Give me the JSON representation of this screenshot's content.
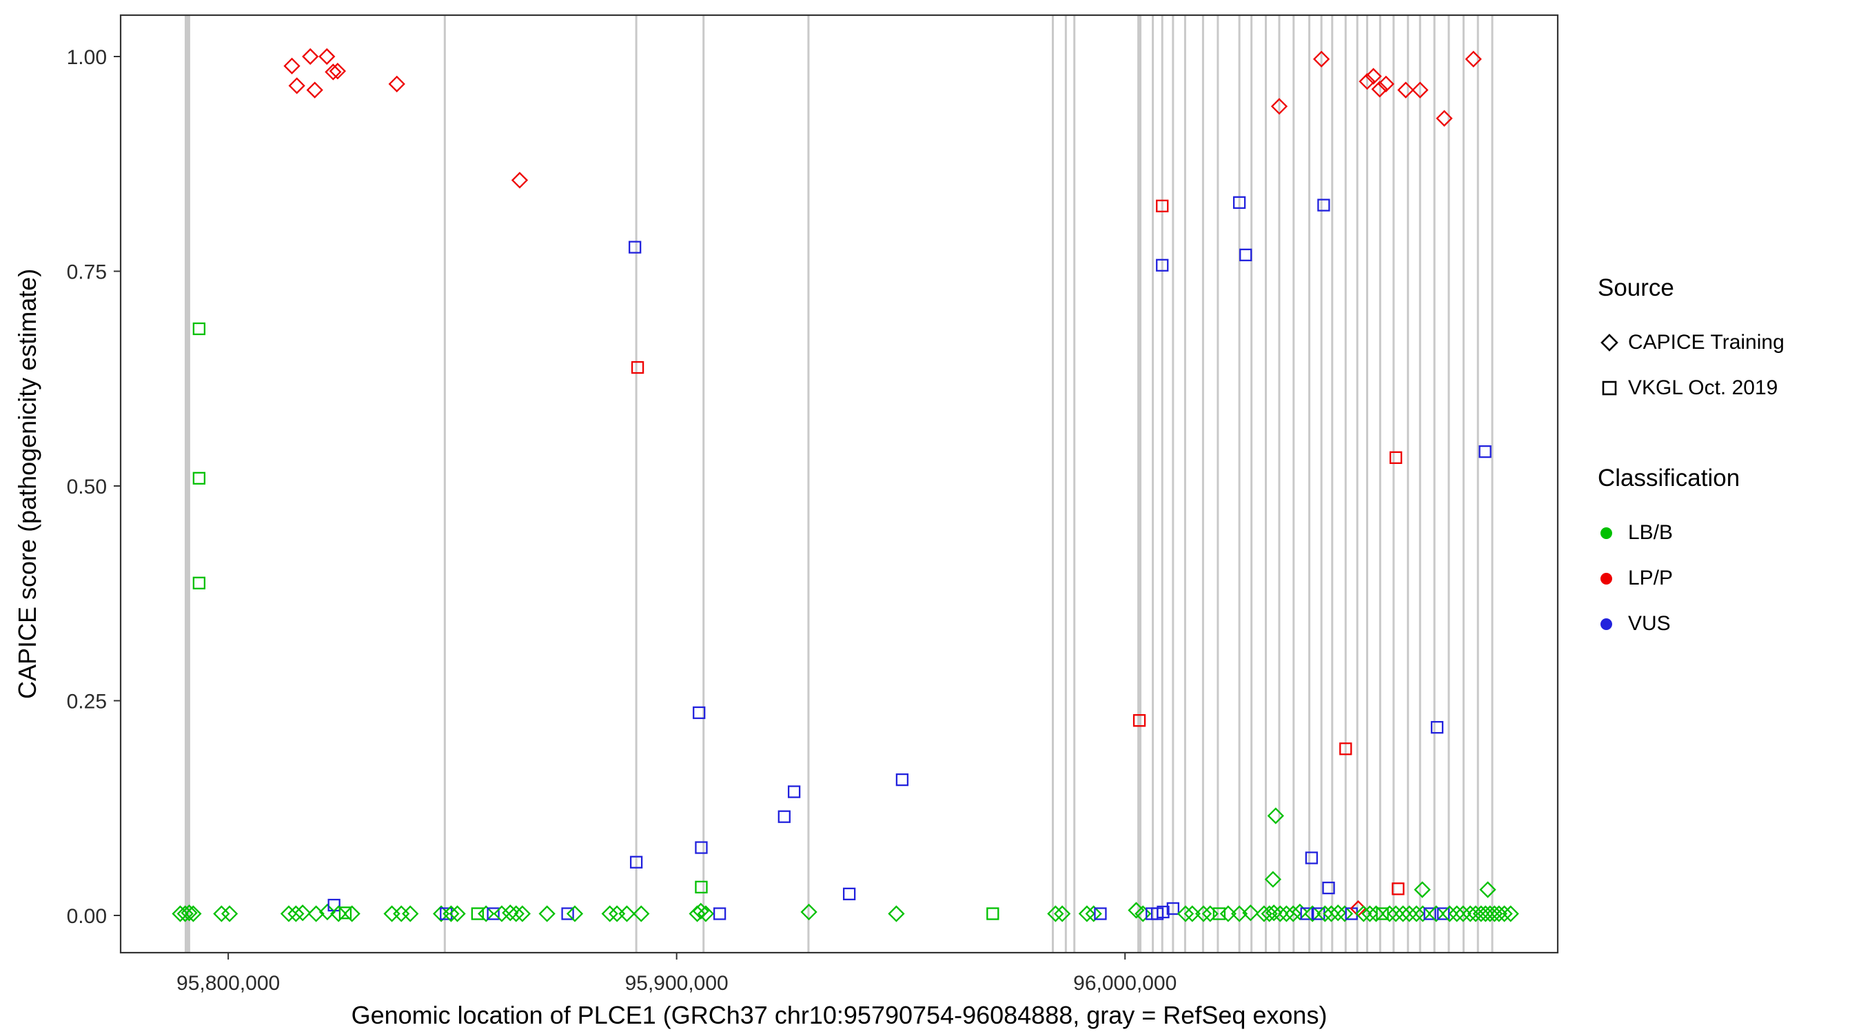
{
  "legend": {
    "source": {
      "title": "Source",
      "items": [
        {
          "label": "CAPICE Training",
          "shape": "diamond"
        },
        {
          "label": "VKGL Oct. 2019",
          "shape": "square"
        }
      ]
    },
    "classification": {
      "title": "Classification",
      "items": [
        {
          "label": "LB/B",
          "color": "#00C000"
        },
        {
          "label": "LP/P",
          "color": "#EE0000"
        },
        {
          "label": "VUS",
          "color": "#2222DD"
        }
      ]
    }
  },
  "chart_data": {
    "type": "scatter",
    "title": "",
    "xlabel": "Genomic location of PLCE1 (GRCh37 chr10:95790754-96084888, gray = RefSeq exons)",
    "ylabel": "CAPICE score (pathogenicity estimate)",
    "xlim": [
      95776000,
      96096500
    ],
    "ylim": [
      0,
      1
    ],
    "grid": false,
    "legend_position": "right",
    "x_ticks": [
      {
        "v": 95800000,
        "label": "95,800,000"
      },
      {
        "v": 95900000,
        "label": "95,900,000"
      },
      {
        "v": 96000000,
        "label": "96,000,000"
      }
    ],
    "y_ticks": [
      {
        "v": 0.0,
        "label": "0.00"
      },
      {
        "v": 0.25,
        "label": "0.25"
      },
      {
        "v": 0.5,
        "label": "0.50"
      },
      {
        "v": 0.75,
        "label": "0.75"
      },
      {
        "v": 1.0,
        "label": "1.00"
      }
    ],
    "classes": {
      "G": "LB/B",
      "R": "LP/P",
      "B": "VUS"
    },
    "sources": {
      "D": "CAPICE Training",
      "S": "VKGL Oct. 2019"
    },
    "colors": {
      "G": "#00C000",
      "R": "#EE0000",
      "B": "#2222DD"
    },
    "exon_color": "#c9c9c9",
    "exons": [
      {
        "x": 95790900,
        "w": 8
      },
      {
        "x": 95848300,
        "w": 3
      },
      {
        "x": 95891000,
        "w": 3
      },
      {
        "x": 95906000,
        "w": 3
      },
      {
        "x": 95929400,
        "w": 3
      },
      {
        "x": 95983900,
        "w": 3
      },
      {
        "x": 95986800,
        "w": 3
      },
      {
        "x": 95988700,
        "w": 3
      },
      {
        "x": 96003200,
        "w": 6
      },
      {
        "x": 96006200,
        "w": 3
      },
      {
        "x": 96008300,
        "w": 3
      },
      {
        "x": 96010700,
        "w": 3
      },
      {
        "x": 96013400,
        "w": 3
      },
      {
        "x": 96017400,
        "w": 3
      },
      {
        "x": 96020700,
        "w": 3
      },
      {
        "x": 96025500,
        "w": 3
      },
      {
        "x": 96028200,
        "w": 3
      },
      {
        "x": 96031400,
        "w": 3
      },
      {
        "x": 96034400,
        "w": 3
      },
      {
        "x": 96037600,
        "w": 3
      },
      {
        "x": 96041100,
        "w": 3
      },
      {
        "x": 96043800,
        "w": 3
      },
      {
        "x": 96046200,
        "w": 3
      },
      {
        "x": 96049200,
        "w": 3
      },
      {
        "x": 96051800,
        "w": 3
      },
      {
        "x": 96054000,
        "w": 3
      },
      {
        "x": 96056900,
        "w": 3
      },
      {
        "x": 96059900,
        "w": 3
      },
      {
        "x": 96063100,
        "w": 3
      },
      {
        "x": 96065800,
        "w": 3
      },
      {
        "x": 96069000,
        "w": 3
      },
      {
        "x": 96072200,
        "w": 3
      },
      {
        "x": 96075500,
        "w": 3
      },
      {
        "x": 96078700,
        "w": 3
      },
      {
        "x": 96081900,
        "w": 3
      }
    ],
    "points": [
      [
        95814200,
        0.989,
        "R",
        "D"
      ],
      [
        95818300,
        1.0,
        "R",
        "D"
      ],
      [
        95822000,
        1.0,
        "R",
        "D"
      ],
      [
        95824400,
        0.983,
        "R",
        "D"
      ],
      [
        95815300,
        0.966,
        "R",
        "D"
      ],
      [
        95819300,
        0.961,
        "R",
        "D"
      ],
      [
        95823400,
        0.982,
        "R",
        "D"
      ],
      [
        95837600,
        0.968,
        "R",
        "D"
      ],
      [
        95865000,
        0.856,
        "R",
        "D"
      ],
      [
        95891300,
        0.638,
        "R",
        "S"
      ],
      [
        95890700,
        0.778,
        "B",
        "S"
      ],
      [
        95793500,
        0.683,
        "G",
        "S"
      ],
      [
        95793500,
        0.509,
        "G",
        "S"
      ],
      [
        95793500,
        0.387,
        "G",
        "S"
      ],
      [
        95905000,
        0.236,
        "B",
        "S"
      ],
      [
        95891000,
        0.062,
        "B",
        "S"
      ],
      [
        95905500,
        0.079,
        "B",
        "S"
      ],
      [
        95905500,
        0.033,
        "G",
        "S"
      ],
      [
        95926200,
        0.144,
        "B",
        "S"
      ],
      [
        95924000,
        0.115,
        "B",
        "S"
      ],
      [
        95938500,
        0.025,
        "B",
        "S"
      ],
      [
        95950300,
        0.158,
        "B",
        "S"
      ],
      [
        96003200,
        0.227,
        "R",
        "S"
      ],
      [
        96008300,
        0.826,
        "R",
        "S"
      ],
      [
        96008300,
        0.757,
        "B",
        "S"
      ],
      [
        96025500,
        0.83,
        "B",
        "S"
      ],
      [
        96026900,
        0.769,
        "B",
        "S"
      ],
      [
        96044300,
        0.827,
        "B",
        "S"
      ],
      [
        96034400,
        0.942,
        "R",
        "D"
      ],
      [
        96043800,
        0.997,
        "R",
        "D"
      ],
      [
        96054000,
        0.971,
        "R",
        "D"
      ],
      [
        96055400,
        0.977,
        "R",
        "D"
      ],
      [
        96056800,
        0.962,
        "R",
        "D"
      ],
      [
        96058200,
        0.968,
        "R",
        "D"
      ],
      [
        96062600,
        0.961,
        "R",
        "D"
      ],
      [
        96065800,
        0.961,
        "R",
        "D"
      ],
      [
        96071200,
        0.928,
        "R",
        "D"
      ],
      [
        96077700,
        0.997,
        "R",
        "D"
      ],
      [
        96060400,
        0.533,
        "R",
        "S"
      ],
      [
        96080300,
        0.54,
        "B",
        "S"
      ],
      [
        96069600,
        0.219,
        "B",
        "S"
      ],
      [
        96049200,
        0.194,
        "R",
        "S"
      ],
      [
        96060900,
        0.031,
        "R",
        "S"
      ],
      [
        96033600,
        0.116,
        "G",
        "D"
      ],
      [
        96033000,
        0.042,
        "G",
        "D"
      ],
      [
        96041600,
        0.067,
        "B",
        "S"
      ],
      [
        96045400,
        0.032,
        "B",
        "S"
      ],
      [
        96066300,
        0.03,
        "G",
        "D"
      ],
      [
        96080900,
        0.03,
        "G",
        "D"
      ],
      [
        95789300,
        0.002,
        "G",
        "D"
      ],
      [
        95790400,
        0.002,
        "G",
        "D"
      ],
      [
        95791300,
        0.003,
        "G",
        "D"
      ],
      [
        95792200,
        0.002,
        "G",
        "D"
      ],
      [
        95798500,
        0.002,
        "G",
        "D"
      ],
      [
        95800300,
        0.002,
        "G",
        "D"
      ],
      [
        95813500,
        0.002,
        "G",
        "D"
      ],
      [
        95815100,
        0.002,
        "G",
        "D"
      ],
      [
        95816600,
        0.003,
        "G",
        "D"
      ],
      [
        95819600,
        0.002,
        "G",
        "D"
      ],
      [
        95822100,
        0.004,
        "G",
        "D"
      ],
      [
        95823600,
        0.012,
        "B",
        "S"
      ],
      [
        95824600,
        0.002,
        "G",
        "D"
      ],
      [
        95826100,
        0.003,
        "G",
        "S"
      ],
      [
        95827600,
        0.002,
        "G",
        "D"
      ],
      [
        95836500,
        0.002,
        "G",
        "D"
      ],
      [
        95838600,
        0.002,
        "G",
        "D"
      ],
      [
        95840600,
        0.002,
        "G",
        "D"
      ],
      [
        95847500,
        0.002,
        "G",
        "D"
      ],
      [
        95848600,
        0.002,
        "B",
        "S"
      ],
      [
        95849700,
        0.002,
        "G",
        "D"
      ],
      [
        95851100,
        0.002,
        "G",
        "D"
      ],
      [
        95855600,
        0.002,
        "G",
        "S"
      ],
      [
        95857500,
        0.002,
        "G",
        "D"
      ],
      [
        95859100,
        0.002,
        "B",
        "S"
      ],
      [
        95861000,
        0.002,
        "G",
        "D"
      ],
      [
        95862900,
        0.003,
        "G",
        "D"
      ],
      [
        95864200,
        0.002,
        "G",
        "D"
      ],
      [
        95865600,
        0.002,
        "G",
        "D"
      ],
      [
        95871100,
        0.002,
        "G",
        "D"
      ],
      [
        95875700,
        0.002,
        "B",
        "S"
      ],
      [
        95877300,
        0.002,
        "G",
        "D"
      ],
      [
        95885100,
        0.002,
        "G",
        "D"
      ],
      [
        95886700,
        0.002,
        "G",
        "D"
      ],
      [
        95888900,
        0.002,
        "G",
        "D"
      ],
      [
        95892100,
        0.002,
        "G",
        "D"
      ],
      [
        95904600,
        0.002,
        "G",
        "D"
      ],
      [
        95905400,
        0.005,
        "G",
        "D"
      ],
      [
        95906500,
        0.002,
        "G",
        "D"
      ],
      [
        95909600,
        0.002,
        "B",
        "S"
      ],
      [
        95929500,
        0.004,
        "G",
        "D"
      ],
      [
        95949000,
        0.002,
        "G",
        "D"
      ],
      [
        95970500,
        0.002,
        "G",
        "S"
      ],
      [
        95984500,
        0.002,
        "G",
        "D"
      ],
      [
        95986000,
        0.002,
        "G",
        "D"
      ],
      [
        95991500,
        0.002,
        "G",
        "D"
      ],
      [
        95993000,
        0.002,
        "G",
        "D"
      ],
      [
        95994500,
        0.002,
        "B",
        "S"
      ],
      [
        96002500,
        0.006,
        "G",
        "D"
      ],
      [
        96004000,
        0.002,
        "G",
        "D"
      ],
      [
        96006000,
        0.002,
        "B",
        "S"
      ],
      [
        96007200,
        0.002,
        "B",
        "S"
      ],
      [
        96008500,
        0.004,
        "B",
        "S"
      ],
      [
        96010700,
        0.008,
        "B",
        "S"
      ],
      [
        96013500,
        0.002,
        "G",
        "D"
      ],
      [
        96015000,
        0.002,
        "G",
        "D"
      ],
      [
        96017500,
        0.002,
        "G",
        "D"
      ],
      [
        96019000,
        0.002,
        "G",
        "D"
      ],
      [
        96021000,
        0.002,
        "G",
        "S"
      ],
      [
        96023000,
        0.002,
        "G",
        "D"
      ],
      [
        96025500,
        0.002,
        "G",
        "D"
      ],
      [
        96028000,
        0.003,
        "G",
        "D"
      ],
      [
        96031000,
        0.002,
        "G",
        "D"
      ],
      [
        96032200,
        0.002,
        "G",
        "D"
      ],
      [
        96033200,
        0.003,
        "G",
        "D"
      ],
      [
        96034600,
        0.002,
        "G",
        "D"
      ],
      [
        96036000,
        0.002,
        "G",
        "D"
      ],
      [
        96037500,
        0.002,
        "G",
        "D"
      ],
      [
        96039000,
        0.004,
        "G",
        "D"
      ],
      [
        96040500,
        0.002,
        "B",
        "S"
      ],
      [
        96041800,
        0.002,
        "G",
        "D"
      ],
      [
        96043200,
        0.002,
        "B",
        "S"
      ],
      [
        96044600,
        0.002,
        "G",
        "D"
      ],
      [
        96046000,
        0.002,
        "G",
        "D"
      ],
      [
        96047500,
        0.003,
        "G",
        "D"
      ],
      [
        96049000,
        0.002,
        "G",
        "D"
      ],
      [
        96050500,
        0.002,
        "B",
        "S"
      ],
      [
        96052000,
        0.008,
        "R",
        "D"
      ],
      [
        96053200,
        0.002,
        "G",
        "D"
      ],
      [
        96054600,
        0.002,
        "G",
        "D"
      ],
      [
        96056000,
        0.002,
        "G",
        "D"
      ],
      [
        96057400,
        0.002,
        "G",
        "S"
      ],
      [
        96059000,
        0.002,
        "G",
        "D"
      ],
      [
        96060400,
        0.002,
        "G",
        "D"
      ],
      [
        96062000,
        0.002,
        "G",
        "D"
      ],
      [
        96063400,
        0.002,
        "G",
        "D"
      ],
      [
        96065000,
        0.002,
        "G",
        "D"
      ],
      [
        96066400,
        0.002,
        "G",
        "D"
      ],
      [
        96068000,
        0.002,
        "B",
        "S"
      ],
      [
        96069400,
        0.002,
        "G",
        "D"
      ],
      [
        96071000,
        0.002,
        "B",
        "S"
      ],
      [
        96072400,
        0.002,
        "G",
        "D"
      ],
      [
        96074000,
        0.002,
        "G",
        "D"
      ],
      [
        96075400,
        0.002,
        "G",
        "D"
      ],
      [
        96077000,
        0.002,
        "G",
        "D"
      ],
      [
        96078200,
        0.002,
        "G",
        "D"
      ],
      [
        96079400,
        0.002,
        "G",
        "D"
      ],
      [
        96080400,
        0.002,
        "G",
        "D"
      ],
      [
        96081400,
        0.002,
        "G",
        "D"
      ],
      [
        96082400,
        0.002,
        "G",
        "D"
      ],
      [
        96083400,
        0.002,
        "G",
        "D"
      ],
      [
        96084600,
        0.002,
        "G",
        "D"
      ],
      [
        96086000,
        0.002,
        "G",
        "D"
      ]
    ]
  }
}
